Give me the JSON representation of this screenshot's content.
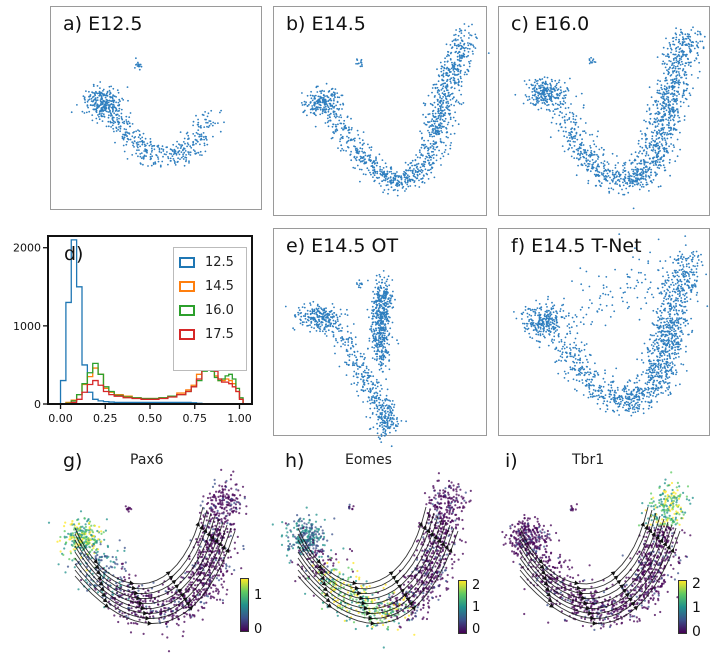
{
  "panels": {
    "a": {
      "label": "a) E12.5"
    },
    "b": {
      "label": "b) E14.5"
    },
    "c": {
      "label": "c) E16.0"
    },
    "e": {
      "label": "e) E14.5 OT"
    },
    "f": {
      "label": "f) E14.5 T-Net"
    },
    "g": {
      "label": "g)",
      "gene": "Pax6",
      "cbar_ticks": [
        "1",
        "0"
      ]
    },
    "h": {
      "label": "h)",
      "gene": "Eomes",
      "cbar_ticks": [
        "2",
        "1",
        "0"
      ]
    },
    "i": {
      "label": "i)",
      "gene": "Tbr1",
      "cbar_ticks": [
        "2",
        "1",
        "0"
      ]
    }
  },
  "chart_data": [
    {
      "panel": "d",
      "type": "line",
      "title": "d)",
      "xlabel": "",
      "ylabel": "",
      "xlim": [
        -0.07,
        1.07
      ],
      "ylim": [
        0,
        2150
      ],
      "x_ticks": [
        "0.00",
        "0.25",
        "0.50",
        "0.75",
        "1.00"
      ],
      "y_ticks": [
        "0",
        "1000",
        "2000"
      ],
      "legend_position": "top-right",
      "colors": {
        "12.5": "#1f77b4",
        "14.5": "#ff7f0e",
        "16.0": "#2ca02c",
        "17.5": "#d62728"
      },
      "x": [
        0.0,
        0.03,
        0.06,
        0.09,
        0.12,
        0.15,
        0.18,
        0.21,
        0.24,
        0.27,
        0.3,
        0.35,
        0.4,
        0.45,
        0.5,
        0.55,
        0.6,
        0.65,
        0.7,
        0.73,
        0.76,
        0.79,
        0.82,
        0.84,
        0.86,
        0.88,
        0.9,
        0.92,
        0.94,
        0.96,
        0.98,
        1.0
      ],
      "series": [
        {
          "name": "12.5",
          "values": [
            300,
            1300,
            2100,
            1500,
            500,
            150,
            60,
            40,
            30,
            25,
            20,
            20,
            20,
            20,
            20,
            20,
            20,
            20,
            20,
            15,
            10,
            5,
            0,
            0,
            0,
            0,
            0,
            0,
            0,
            0,
            0,
            0
          ]
        },
        {
          "name": "14.5",
          "values": [
            0,
            20,
            50,
            120,
            250,
            350,
            460,
            380,
            200,
            150,
            120,
            100,
            80,
            70,
            70,
            80,
            100,
            140,
            180,
            240,
            380,
            640,
            760,
            520,
            360,
            300,
            300,
            320,
            300,
            260,
            160,
            60
          ]
        },
        {
          "name": "16.0",
          "values": [
            0,
            10,
            40,
            120,
            260,
            400,
            520,
            380,
            220,
            160,
            110,
            90,
            80,
            70,
            70,
            80,
            100,
            120,
            160,
            220,
            300,
            420,
            520,
            420,
            340,
            300,
            320,
            360,
            380,
            320,
            200,
            80
          ]
        },
        {
          "name": "17.5",
          "values": [
            0,
            5,
            20,
            60,
            150,
            250,
            300,
            240,
            160,
            120,
            100,
            80,
            70,
            60,
            60,
            70,
            90,
            120,
            160,
            220,
            320,
            500,
            720,
            620,
            420,
            320,
            280,
            280,
            260,
            220,
            160,
            60
          ]
        }
      ]
    }
  ]
}
